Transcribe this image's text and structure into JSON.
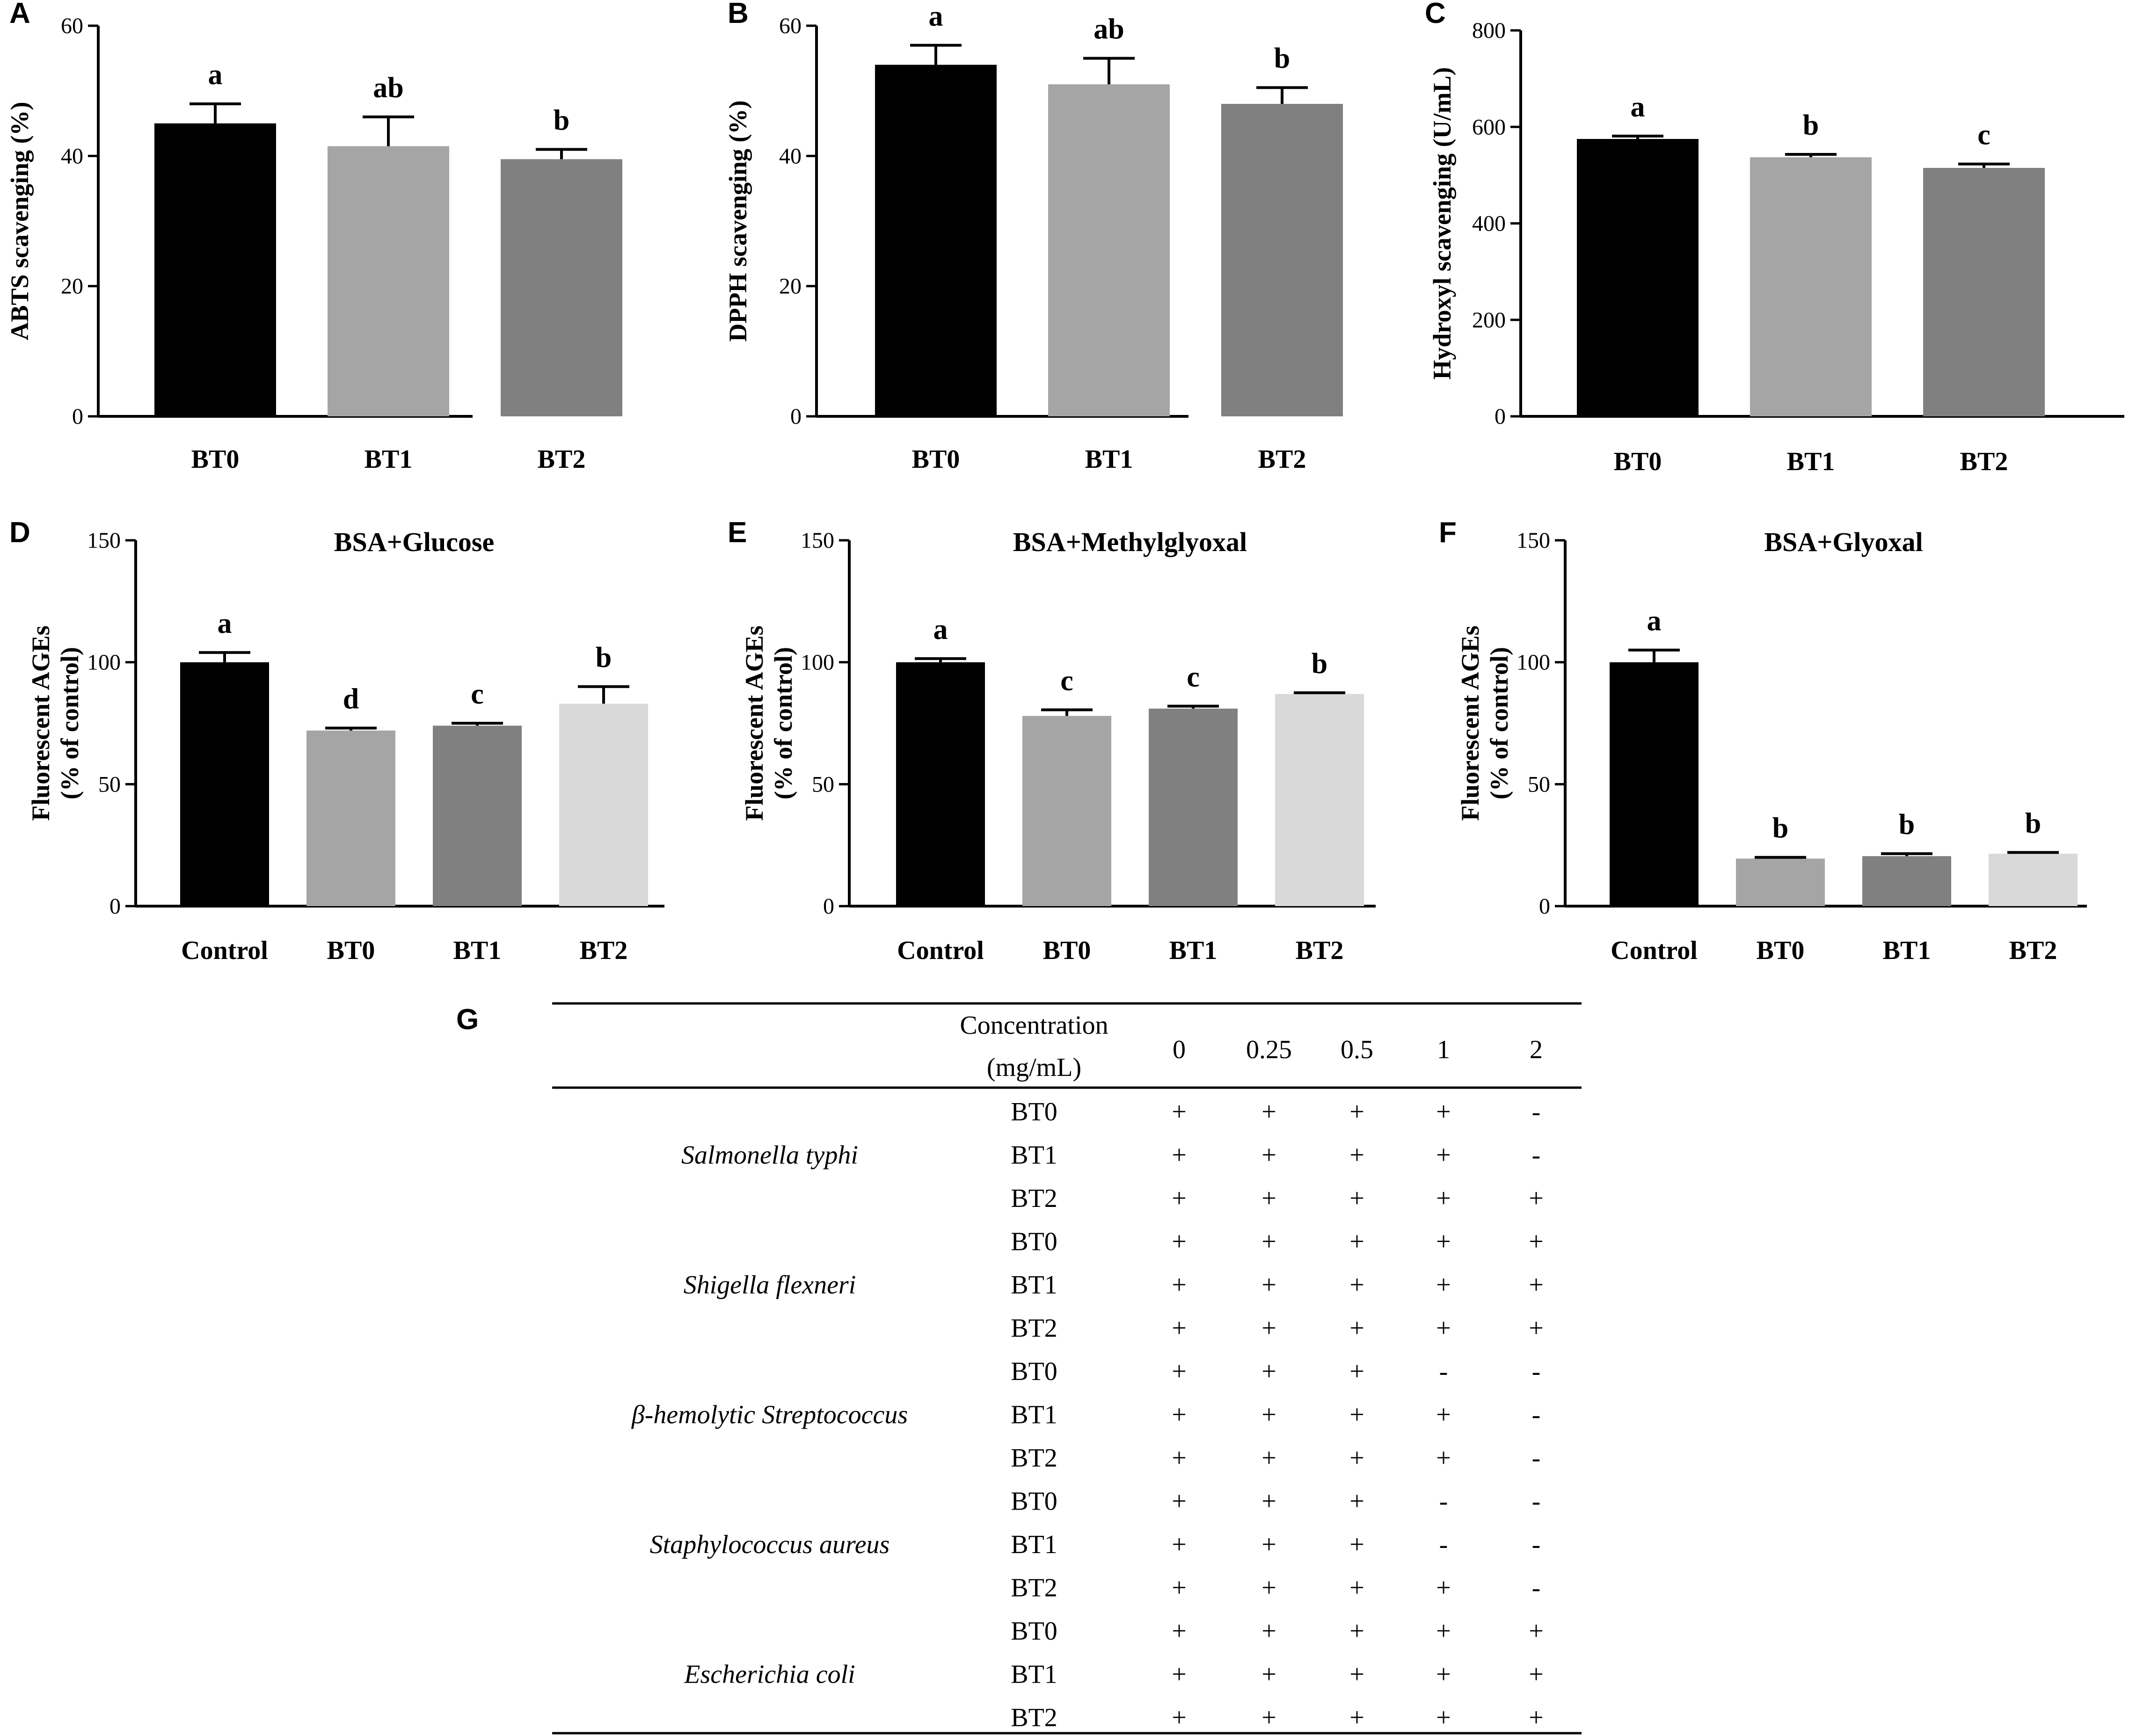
{
  "figure": {
    "colors": {
      "black": "#000000",
      "gray1": "#a5a5a5",
      "gray2": "#808080",
      "gray3": "#d9d9d9"
    }
  },
  "chart_data": [
    {
      "panel": "A",
      "type": "bar",
      "title": "",
      "categories": [
        "BT0",
        "BT1",
        "BT2"
      ],
      "values": [
        45,
        41.5,
        39.5
      ],
      "errors": [
        3,
        4.5,
        1.5
      ],
      "letters": [
        "a",
        "ab",
        "b"
      ],
      "colors": [
        "#000000",
        "#a5a5a5",
        "#808080"
      ],
      "ylabel": [
        "ABTS scavenging (%)"
      ],
      "ylim": [
        0,
        60
      ],
      "yticks": [
        0,
        20,
        40,
        60
      ]
    },
    {
      "panel": "B",
      "type": "bar",
      "title": "",
      "categories": [
        "BT0",
        "BT1",
        "BT2"
      ],
      "values": [
        54,
        51,
        48
      ],
      "errors": [
        3,
        4,
        2.5
      ],
      "letters": [
        "a",
        "ab",
        "b"
      ],
      "colors": [
        "#000000",
        "#a5a5a5",
        "#808080"
      ],
      "ylabel": [
        "DPPH scavenging (%)"
      ],
      "ylim": [
        0,
        60
      ],
      "yticks": [
        0,
        20,
        40,
        60
      ]
    },
    {
      "panel": "C",
      "type": "bar",
      "title": "",
      "categories": [
        "BT0",
        "BT1",
        "BT2"
      ],
      "values": [
        575,
        537,
        515
      ],
      "errors": [
        6,
        6,
        8
      ],
      "letters": [
        "a",
        "b",
        "c"
      ],
      "colors": [
        "#000000",
        "#a5a5a5",
        "#808080"
      ],
      "ylabel": [
        "Hydroxyl scavenging (U/mL)"
      ],
      "ylim": [
        0,
        800
      ],
      "yticks": [
        0,
        200,
        400,
        600,
        800
      ]
    },
    {
      "panel": "D",
      "type": "bar",
      "title": "BSA+Glucose",
      "categories": [
        "Control",
        "BT0",
        "BT1",
        "BT2"
      ],
      "values": [
        100,
        72,
        74,
        83
      ],
      "errors": [
        4,
        1,
        1,
        7
      ],
      "letters": [
        "a",
        "d",
        "c",
        "b"
      ],
      "colors": [
        "#000000",
        "#a5a5a5",
        "#808080",
        "#d9d9d9"
      ],
      "ylabel": [
        "Fluorescent AGEs",
        "(% of control)"
      ],
      "ylim": [
        0,
        150
      ],
      "yticks": [
        0,
        50,
        100,
        150
      ]
    },
    {
      "panel": "E",
      "type": "bar",
      "title": "BSA+Methylglyoxal",
      "categories": [
        "Control",
        "BT0",
        "BT1",
        "BT2"
      ],
      "values": [
        100,
        78,
        81,
        87
      ],
      "errors": [
        1.5,
        2.5,
        1,
        0.5
      ],
      "letters": [
        "a",
        "c",
        "c",
        "b"
      ],
      "colors": [
        "#000000",
        "#a5a5a5",
        "#808080",
        "#d9d9d9"
      ],
      "ylabel": [
        "Fluorescent AGEs",
        "(% of control)"
      ],
      "ylim": [
        0,
        150
      ],
      "yticks": [
        0,
        50,
        100,
        150
      ]
    },
    {
      "panel": "F",
      "type": "bar",
      "title": "BSA+Glyoxal",
      "categories": [
        "Control",
        "BT0",
        "BT1",
        "BT2"
      ],
      "values": [
        100,
        19.5,
        20.5,
        21.5
      ],
      "errors": [
        5,
        0.5,
        1,
        0.5
      ],
      "letters": [
        "a",
        "b",
        "b",
        "b"
      ],
      "colors": [
        "#000000",
        "#a5a5a5",
        "#808080",
        "#d9d9d9"
      ],
      "ylabel": [
        "Fluorescent AGEs",
        "(% of control)"
      ],
      "ylim": [
        0,
        150
      ],
      "yticks": [
        0,
        50,
        100,
        150
      ]
    },
    {
      "panel": "G",
      "type": "table",
      "header": {
        "label_line1": "Concentration",
        "label_line2": "(mg/mL)",
        "columns": [
          "0",
          "0.25",
          "0.5",
          "1",
          "2"
        ]
      },
      "groups": [
        {
          "organism": "Salmonella typhi",
          "rows": [
            {
              "sample": "BT0",
              "cells": [
                "+",
                "+",
                "+",
                "+",
                "-"
              ]
            },
            {
              "sample": "BT1",
              "cells": [
                "+",
                "+",
                "+",
                "+",
                "-"
              ]
            },
            {
              "sample": "BT2",
              "cells": [
                "+",
                "+",
                "+",
                "+",
                "+"
              ]
            }
          ]
        },
        {
          "organism": "Shigella flexneri",
          "rows": [
            {
              "sample": "BT0",
              "cells": [
                "+",
                "+",
                "+",
                "+",
                "+"
              ]
            },
            {
              "sample": "BT1",
              "cells": [
                "+",
                "+",
                "+",
                "+",
                "+"
              ]
            },
            {
              "sample": "BT2",
              "cells": [
                "+",
                "+",
                "+",
                "+",
                "+"
              ]
            }
          ]
        },
        {
          "organism": "β-hemolytic Streptococcus",
          "rows": [
            {
              "sample": "BT0",
              "cells": [
                "+",
                "+",
                "+",
                "-",
                "-"
              ]
            },
            {
              "sample": "BT1",
              "cells": [
                "+",
                "+",
                "+",
                "+",
                "-"
              ]
            },
            {
              "sample": "BT2",
              "cells": [
                "+",
                "+",
                "+",
                "+",
                "-"
              ]
            }
          ]
        },
        {
          "organism": "Staphylococcus aureus",
          "rows": [
            {
              "sample": "BT0",
              "cells": [
                "+",
                "+",
                "+",
                "-",
                "-"
              ]
            },
            {
              "sample": "BT1",
              "cells": [
                "+",
                "+",
                "+",
                "-",
                "-"
              ]
            },
            {
              "sample": "BT2",
              "cells": [
                "+",
                "+",
                "+",
                "+",
                "-"
              ]
            }
          ]
        },
        {
          "organism": "Escherichia coli",
          "rows": [
            {
              "sample": "BT0",
              "cells": [
                "+",
                "+",
                "+",
                "+",
                "+"
              ]
            },
            {
              "sample": "BT1",
              "cells": [
                "+",
                "+",
                "+",
                "+",
                "+"
              ]
            },
            {
              "sample": "BT2",
              "cells": [
                "+",
                "+",
                "+",
                "+",
                "+"
              ]
            }
          ]
        }
      ]
    }
  ]
}
